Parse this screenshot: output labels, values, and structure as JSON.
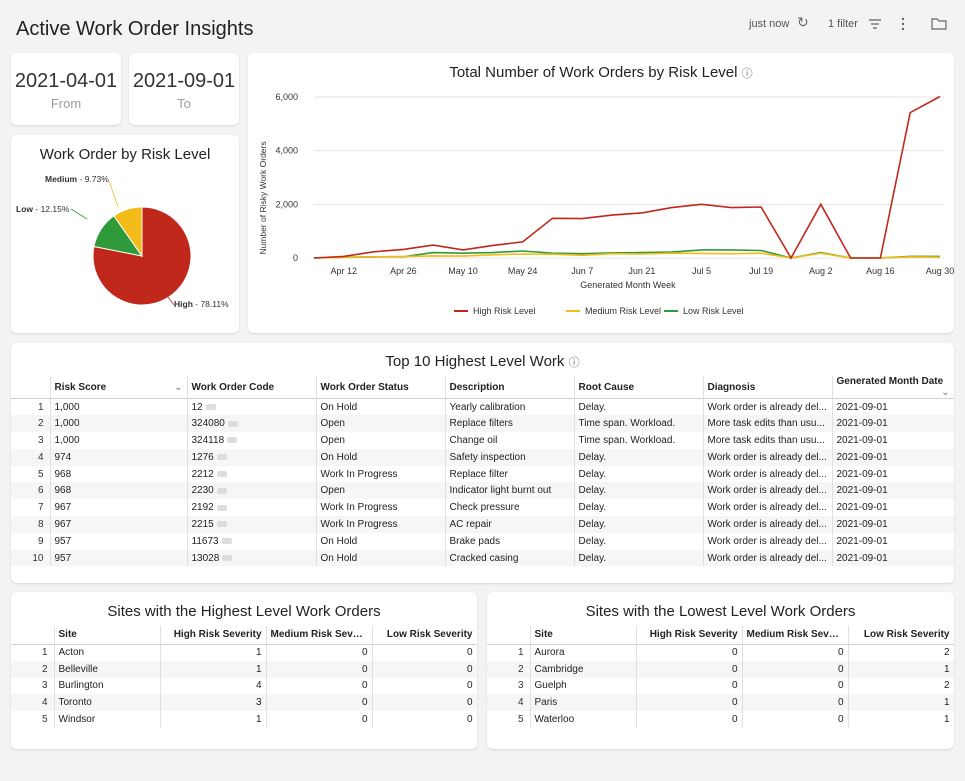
{
  "header": {
    "title": "Active Work Order Insights",
    "updated": "just now",
    "filter_label": "1 filter"
  },
  "dates": {
    "from_value": "2021-04-01",
    "from_label": "From",
    "to_value": "2021-09-01",
    "to_label": "To"
  },
  "pie": {
    "title": "Work Order by Risk Level",
    "slices": [
      {
        "name": "High",
        "pct": "78.11%",
        "value": 78.11,
        "color": "#c0281c"
      },
      {
        "name": "Low",
        "pct": "12.15%",
        "value": 12.15,
        "color": "#2e9a3a"
      },
      {
        "name": "Medium",
        "pct": "9.73%",
        "value": 9.73,
        "color": "#f4bc18"
      }
    ]
  },
  "chart_data": {
    "type": "line",
    "title": "Total Number of Work Orders by Risk Level",
    "xlabel": "Generated Month Week",
    "ylabel": "Number of Risky Work Orders",
    "ylim": [
      0,
      6000
    ],
    "yticks": [
      "0",
      "2,000",
      "4,000",
      "6,000"
    ],
    "xticks": [
      "Apr 12",
      "Apr 26",
      "May 10",
      "May 24",
      "Jun 7",
      "Jun 21",
      "Jul 5",
      "Jul 19",
      "Aug 2",
      "Aug 16",
      "Aug 30"
    ],
    "series": [
      {
        "name": "High Risk Level",
        "color": "#c0281c",
        "values": [
          0,
          60,
          230,
          320,
          480,
          300,
          470,
          600,
          1480,
          1470,
          1600,
          1680,
          1880,
          2000,
          1880,
          1900,
          0,
          2000,
          0,
          0,
          5420,
          6020
        ]
      },
      {
        "name": "Medium Risk Level",
        "color": "#f4bc18",
        "values": [
          0,
          20,
          40,
          60,
          80,
          70,
          120,
          150,
          140,
          100,
          160,
          150,
          180,
          170,
          160,
          180,
          0,
          180,
          0,
          0,
          40,
          30
        ]
      },
      {
        "name": "Low Risk Level",
        "color": "#2e9a3a",
        "values": [
          0,
          30,
          40,
          50,
          200,
          180,
          200,
          260,
          180,
          160,
          190,
          200,
          220,
          300,
          300,
          280,
          0,
          200,
          0,
          0,
          60,
          60
        ]
      }
    ]
  },
  "top10": {
    "title": "Top 10 Highest Level Work",
    "columns": [
      "Risk Score",
      "Work Order Code",
      "Work Order Status",
      "Description",
      "Root Cause",
      "Diagnosis",
      "Generated Month Date"
    ],
    "rows": [
      [
        "1",
        "1,000",
        "12",
        "On Hold",
        "Yearly calibration",
        "Delay.",
        "Work order is already del...",
        "2021-09-01"
      ],
      [
        "2",
        "1,000",
        "324080",
        "Open",
        "Replace filters",
        "Time span. Workload.",
        "More task edits than usu...",
        "2021-09-01"
      ],
      [
        "3",
        "1,000",
        "324118",
        "Open",
        "Change oil",
        "Time span. Workload.",
        "More task edits than usu...",
        "2021-09-01"
      ],
      [
        "4",
        "974",
        "1276",
        "On Hold",
        "Safety inspection",
        "Delay.",
        "Work order is already del...",
        "2021-09-01"
      ],
      [
        "5",
        "968",
        "2212",
        "Work In Progress",
        "Replace filter",
        "Delay.",
        "Work order is already del...",
        "2021-09-01"
      ],
      [
        "6",
        "968",
        "2230",
        "Open",
        "Indicator light burnt out",
        "Delay.",
        "Work order is already del...",
        "2021-09-01"
      ],
      [
        "7",
        "967",
        "2192",
        "Work In Progress",
        "Check pressure",
        "Delay.",
        "Work order is already del...",
        "2021-09-01"
      ],
      [
        "8",
        "967",
        "2215",
        "Work In Progress",
        "AC repair",
        "Delay.",
        "Work order is already del...",
        "2021-09-01"
      ],
      [
        "9",
        "957",
        "11673",
        "On Hold",
        "Brake pads",
        "Delay.",
        "Work order is already del...",
        "2021-09-01"
      ],
      [
        "10",
        "957",
        "13028",
        "On Hold",
        "Cracked casing",
        "Delay.",
        "Work order is already del...",
        "2021-09-01"
      ]
    ]
  },
  "highest_sites": {
    "title": "Sites with the Highest Level Work Orders",
    "columns": [
      "Site",
      "High Risk Severity",
      "Medium Risk Sever...",
      "Low Risk Severity"
    ],
    "rows": [
      [
        "1",
        "Acton",
        "1",
        "0",
        "0"
      ],
      [
        "2",
        "Belleville",
        "1",
        "0",
        "0"
      ],
      [
        "3",
        "Burlington",
        "4",
        "0",
        "0"
      ],
      [
        "4",
        "Toronto",
        "3",
        "0",
        "0"
      ],
      [
        "5",
        "Windsor",
        "1",
        "0",
        "0"
      ]
    ]
  },
  "lowest_sites": {
    "title": "Sites with the Lowest Level Work Orders",
    "columns": [
      "Site",
      "High Risk Severity",
      "Medium Risk Sever...",
      "Low Risk Severity"
    ],
    "rows": [
      [
        "1",
        "Aurora",
        "0",
        "0",
        "2"
      ],
      [
        "2",
        "Cambridge",
        "0",
        "0",
        "1"
      ],
      [
        "3",
        "Guelph",
        "0",
        "0",
        "2"
      ],
      [
        "4",
        "Paris",
        "0",
        "0",
        "1"
      ],
      [
        "5",
        "Waterloo",
        "0",
        "0",
        "1"
      ]
    ]
  }
}
